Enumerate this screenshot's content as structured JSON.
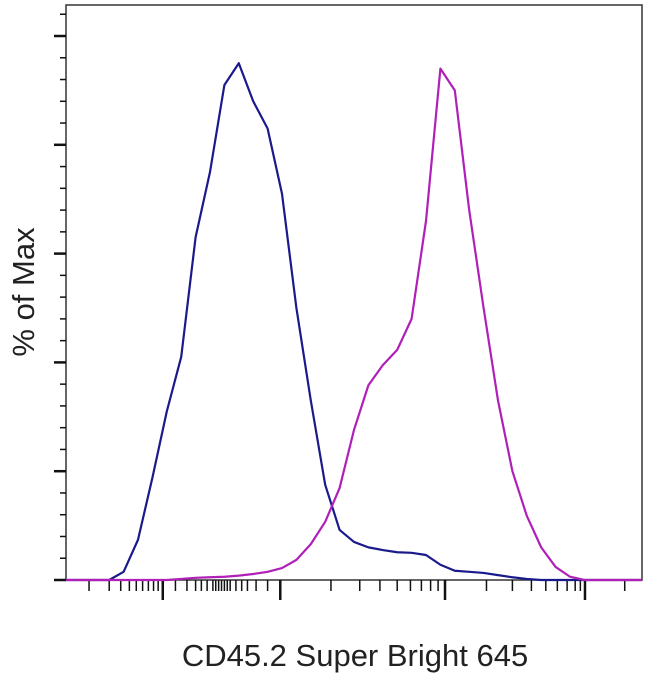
{
  "chart_data": {
    "type": "line",
    "xlabel": "CD45.2 Super Bright 645",
    "ylabel": "% of Max",
    "x": [
      0,
      2.5,
      5,
      7.5,
      10,
      12.5,
      15,
      17.5,
      20,
      22.5,
      25,
      27.5,
      30,
      32.5,
      35,
      37.5,
      40,
      42.5,
      45,
      47.5,
      50,
      52.5,
      55,
      57.5,
      60,
      62.5,
      65,
      67.5,
      70,
      72.5,
      75,
      77.5,
      80,
      82.5,
      85,
      87.5,
      90,
      92.5,
      95,
      97.5,
      100
    ],
    "series": [
      {
        "color": "#1a1a8c",
        "values": [
          0,
          0,
          0,
          0,
          1.5,
          7.4,
          18.8,
          31,
          41,
          63,
          75,
          91,
          95,
          88,
          83,
          71,
          50,
          33,
          17.5,
          9.2,
          7,
          6,
          5.5,
          5.1,
          5,
          4.6,
          2.8,
          1.7,
          1.5,
          1.3,
          0.9,
          0.5,
          0.2,
          0,
          0,
          0,
          0,
          0,
          0,
          0,
          0
        ]
      },
      {
        "color": "#b020b8",
        "values": [
          0,
          0,
          0,
          0,
          0,
          0,
          0,
          0,
          0.2,
          0.4,
          0.5,
          0.6,
          0.8,
          1.1,
          1.5,
          2.2,
          3.7,
          6.6,
          10.7,
          16.9,
          27.6,
          35.8,
          39.5,
          42.3,
          48,
          66,
          94,
          90,
          68,
          50,
          33,
          20,
          11.8,
          6,
          2.4,
          0.6,
          0,
          0,
          0,
          0,
          0
        ]
      }
    ],
    "xlim": [
      0,
      100
    ],
    "xticks": [
      16.8,
      37.2,
      65.8,
      90.1
    ],
    "xminor_ticks": [
      4,
      7.5,
      9.5,
      11,
      12.2,
      13.3,
      14.3,
      15.2,
      16,
      19,
      21,
      22.5,
      23.5,
      24.5,
      25.5,
      26,
      26.5,
      27,
      27.5,
      28,
      28.5,
      29.5,
      30.5,
      31.5,
      33,
      35,
      46,
      51,
      54.5,
      57.5,
      59.8,
      61.7,
      63.3,
      64.6,
      73,
      77.5,
      80.8,
      83.3,
      85.3,
      87,
      88.4,
      89.3,
      97
    ],
    "ylim": [
      0,
      105.7
    ],
    "yticks": [
      0,
      20,
      40,
      60,
      80,
      100
    ],
    "yminor_ticks": [
      4,
      8,
      12,
      16,
      24,
      28,
      32,
      36,
      44,
      48,
      52,
      56,
      64,
      68,
      72,
      76,
      84,
      88,
      92,
      96,
      104
    ]
  }
}
